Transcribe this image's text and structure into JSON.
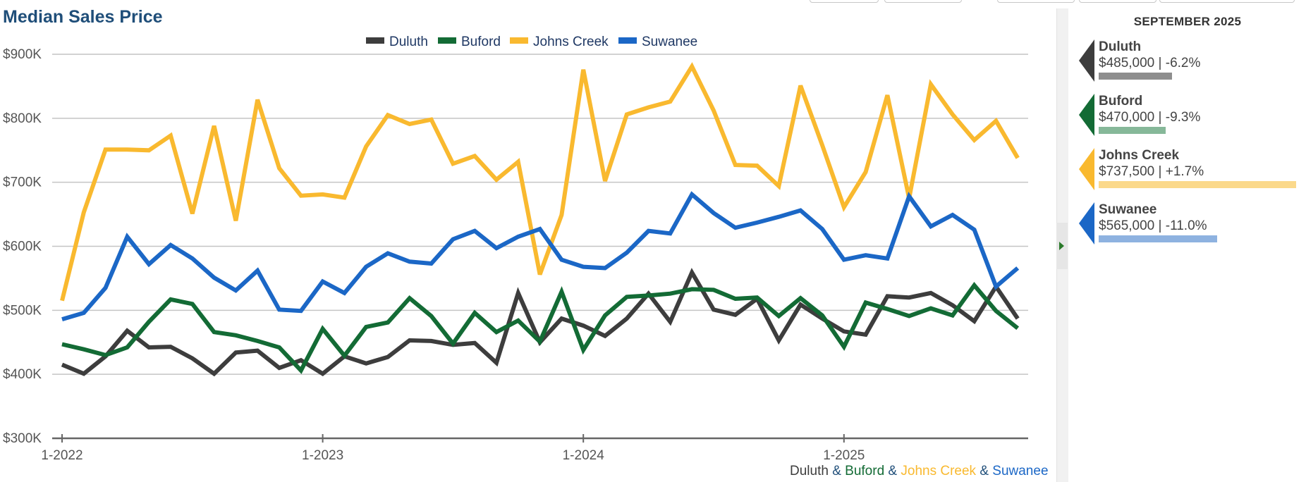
{
  "chart_data": {
    "type": "line",
    "title": "Median Sales Price",
    "x_labels": [
      "1-2022",
      "1-2023",
      "1-2024",
      "1-2025"
    ],
    "y_ticks": [
      {
        "value": 900000,
        "label": "$900K"
      },
      {
        "value": 800000,
        "label": "$800K"
      },
      {
        "value": 700000,
        "label": "$700K"
      },
      {
        "value": 600000,
        "label": "$600K"
      },
      {
        "value": 500000,
        "label": "$500K"
      },
      {
        "value": 400000,
        "label": "$400K"
      },
      {
        "value": 300000,
        "label": "$300K"
      }
    ],
    "ylim": [
      300000,
      900000
    ],
    "x_start": "2022-01",
    "x_end": "2025-09",
    "grid": true,
    "legend_position": "top-center",
    "series": [
      {
        "name": "Duluth",
        "color": "#3d3d3d",
        "values": [
          415000,
          401000,
          428000,
          468000,
          442000,
          443000,
          425000,
          401000,
          434000,
          437000,
          410000,
          422000,
          401000,
          428000,
          417000,
          427000,
          453000,
          452000,
          446000,
          449000,
          418000,
          527000,
          450000,
          487000,
          476000,
          460000,
          487000,
          526000,
          482000,
          559000,
          501000,
          493000,
          518000,
          453000,
          509000,
          487000,
          467000,
          462000,
          522000,
          520000,
          527000,
          508000,
          483000,
          537000,
          487000
        ]
      },
      {
        "name": "Buford",
        "color": "#136b35",
        "values": [
          447000,
          439000,
          430000,
          442000,
          482000,
          517000,
          510000,
          466000,
          461000,
          452000,
          442000,
          406000,
          471000,
          429000,
          474000,
          481000,
          519000,
          491000,
          448000,
          496000,
          466000,
          484000,
          451000,
          529000,
          438000,
          492000,
          521000,
          523000,
          526000,
          533000,
          532000,
          518000,
          520000,
          491000,
          519000,
          492000,
          443000,
          512000,
          502000,
          491000,
          503000,
          492000,
          539000,
          499000,
          472000
        ]
      },
      {
        "name": "Johns Creek",
        "color": "#f9b92f",
        "values": [
          515000,
          653000,
          751000,
          751000,
          750000,
          773000,
          651000,
          788000,
          640000,
          829000,
          722000,
          679000,
          681000,
          676000,
          756000,
          805000,
          791000,
          798000,
          729000,
          741000,
          704000,
          732000,
          556000,
          649000,
          876000,
          702000,
          806000,
          817000,
          826000,
          881000,
          812000,
          727000,
          726000,
          694000,
          851000,
          758000,
          661000,
          716000,
          836000,
          675000,
          853000,
          806000,
          766000,
          796000,
          738000
        ]
      },
      {
        "name": "Suwanee",
        "color": "#1b67c6",
        "values": [
          486000,
          496000,
          535000,
          615000,
          572000,
          602000,
          581000,
          551000,
          531000,
          562000,
          501000,
          499000,
          545000,
          527000,
          568000,
          589000,
          576000,
          573000,
          611000,
          624000,
          597000,
          615000,
          627000,
          579000,
          568000,
          566000,
          590000,
          624000,
          620000,
          681000,
          652000,
          629000,
          637000,
          646000,
          656000,
          627000,
          579000,
          586000,
          581000,
          678000,
          631000,
          649000,
          626000,
          537000,
          566000
        ]
      }
    ]
  },
  "caption": [
    {
      "text": "Duluth",
      "color": "#3d3d3d"
    },
    {
      "text": " & ",
      "color": "#1f4e79"
    },
    {
      "text": "Buford",
      "color": "#136b35"
    },
    {
      "text": " & ",
      "color": "#1f4e79"
    },
    {
      "text": "Johns Creek",
      "color": "#f9b92f"
    },
    {
      "text": " & ",
      "color": "#1f4e79"
    },
    {
      "text": "Suwanee",
      "color": "#1b67c6"
    }
  ],
  "summary": {
    "period": "SEPTEMBER 2025",
    "items": [
      {
        "name": "Duluth",
        "value": "$485,000 | -6.2%",
        "color": "#3d3d3d",
        "bar_color": "#8e8e8e",
        "bar_fraction": 0.37
      },
      {
        "name": "Buford",
        "value": "$470,000 | -9.3%",
        "color": "#136b35",
        "bar_color": "#86b899",
        "bar_fraction": 0.34
      },
      {
        "name": "Johns Creek",
        "value": "$737,500 | +1.7%",
        "color": "#f9b92f",
        "bar_color": "#fbd98b",
        "bar_fraction": 1.0
      },
      {
        "name": "Suwanee",
        "value": "$565,000 | -11.0%",
        "color": "#1b67c6",
        "bar_color": "#8eb2e0",
        "bar_fraction": 0.6
      }
    ]
  }
}
